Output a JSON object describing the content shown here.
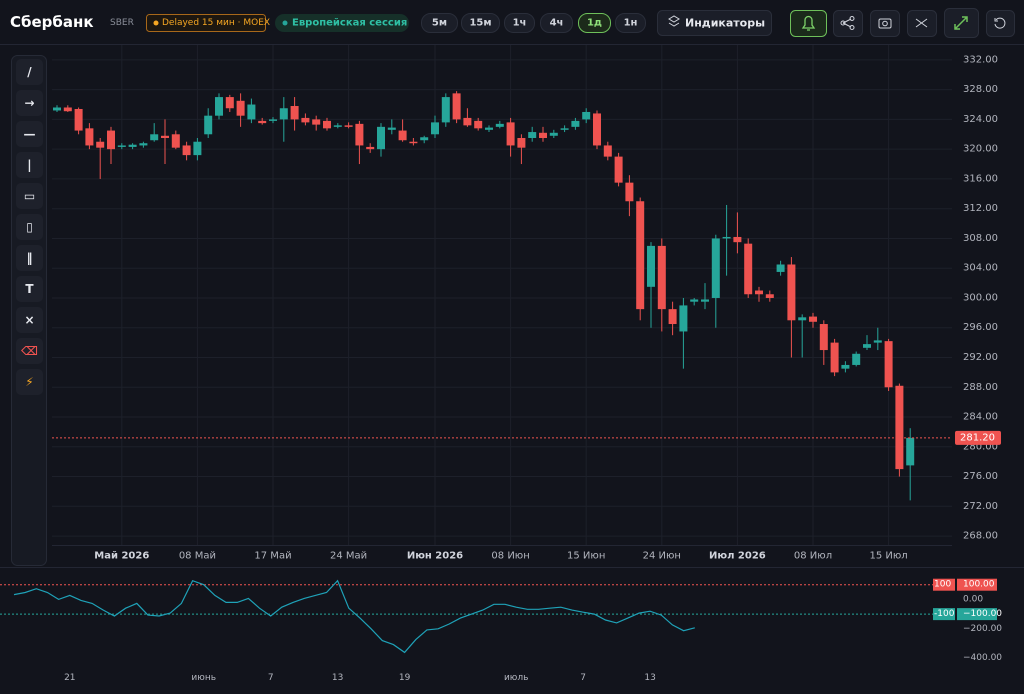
{
  "header": {
    "title": "Сбербанк",
    "ticker": "SBER",
    "delay": "Delayed 15 мин · MOEX",
    "session": "Европейская сессия",
    "intervals": [
      "5м",
      "15м",
      "1ч",
      "4ч",
      "1д",
      "1н"
    ],
    "active_interval": 4,
    "indicators": "Индикаторы"
  },
  "tools": [
    "/",
    "→",
    "—",
    "|",
    "▭",
    "▯",
    "‖",
    "T",
    "×",
    "⌫",
    "⚡"
  ],
  "chart_data": [
    {
      "type": "candlestick",
      "up_color": "#26a69a",
      "down_color": "#ef5350",
      "grid": true,
      "categories": [
        null,
        null,
        null,
        null,
        null,
        null,
        "Май 2026",
        null,
        null,
        null,
        null,
        null,
        null,
        "08 Май",
        null,
        null,
        null,
        null,
        null,
        null,
        "17 Май",
        null,
        null,
        null,
        null,
        null,
        null,
        "24 Май",
        null,
        null,
        null,
        null,
        null,
        null,
        null,
        "Июн 2026",
        null,
        null,
        null,
        null,
        null,
        null,
        "08 Июн",
        null,
        null,
        null,
        null,
        null,
        null,
        "15 Июн",
        null,
        null,
        null,
        null,
        null,
        null,
        "24 Июн",
        null,
        null,
        null,
        null,
        null,
        null,
        "Июл 2026",
        null,
        null,
        null,
        null,
        null,
        null,
        "08 Июл",
        null,
        null,
        null,
        null,
        null,
        null,
        "15 Июл",
        null,
        null
      ],
      "open": [
        325.2,
        325.6,
        325.4,
        322.8,
        321.0,
        322.5,
        320.3,
        320.3,
        320.5,
        321.2,
        321.8,
        322.0,
        320.5,
        319.2,
        322.0,
        324.5,
        327.0,
        326.5,
        324.0,
        323.8,
        323.8,
        324.0,
        325.8,
        324.2,
        324.0,
        323.8,
        323.0,
        323.2,
        323.4,
        320.3,
        320.0,
        322.6,
        322.5,
        321.0,
        321.2,
        322.0,
        323.6,
        327.5,
        324.2,
        323.8,
        322.6,
        323.0,
        323.6,
        321.5,
        321.5,
        322.2,
        321.8,
        322.6,
        323.0,
        324.0,
        324.8,
        320.5,
        319.0,
        315.5,
        313.0,
        301.5,
        307.0,
        298.5,
        295.5,
        299.5,
        299.5,
        300.0,
        308.0,
        308.2,
        307.3,
        301.0,
        300.5,
        303.5,
        304.5,
        297.0,
        297.5,
        296.5,
        294.0,
        290.5,
        291.0,
        293.3,
        294.0,
        294.2,
        288.2,
        277.5
      ],
      "high": [
        325.9,
        325.9,
        325.6,
        323.5,
        321.5,
        323.0,
        320.8,
        320.8,
        321.0,
        323.5,
        324.0,
        322.5,
        321.0,
        321.5,
        325.5,
        327.5,
        327.3,
        327.5,
        326.8,
        324.2,
        324.3,
        327.0,
        327.0,
        324.8,
        324.5,
        324.2,
        323.5,
        323.6,
        323.8,
        320.8,
        323.5,
        324.0,
        324.0,
        321.5,
        321.8,
        324.5,
        327.5,
        327.8,
        325.5,
        324.2,
        323.2,
        323.8,
        324.2,
        322.0,
        323.0,
        323.0,
        322.6,
        323.2,
        324.2,
        325.5,
        325.2,
        321.0,
        319.5,
        316.5,
        313.5,
        307.5,
        308.0,
        299.5,
        300.0,
        300.0,
        302.0,
        308.5,
        312.5,
        311.5,
        308.0,
        301.5,
        301.0,
        305.0,
        305.5,
        297.8,
        298.0,
        297.0,
        294.5,
        291.5,
        292.8,
        295.0,
        296.0,
        294.5,
        288.5,
        282.5
      ],
      "low": [
        325.0,
        325.0,
        322.0,
        320.0,
        316.0,
        318.0,
        320.0,
        320.0,
        320.2,
        321.0,
        318.0,
        320.0,
        318.5,
        318.5,
        321.5,
        324.0,
        325.0,
        323.0,
        323.5,
        323.3,
        323.5,
        321.0,
        322.5,
        323.2,
        322.5,
        322.5,
        322.8,
        322.8,
        318.0,
        319.5,
        319.0,
        322.0,
        321.0,
        320.5,
        320.8,
        321.5,
        323.0,
        323.5,
        323.0,
        322.5,
        322.3,
        322.8,
        319.0,
        318.0,
        321.0,
        321.0,
        321.5,
        322.3,
        322.6,
        323.5,
        320.0,
        318.5,
        315.0,
        311.0,
        297.0,
        296.0,
        295.5,
        295.0,
        290.5,
        299.0,
        298.5,
        296.0,
        303.0,
        306.0,
        300.0,
        299.5,
        299.5,
        303.0,
        292.0,
        292.0,
        296.0,
        291.0,
        289.5,
        290.0,
        290.8,
        293.0,
        293.0,
        287.5,
        276.0,
        272.8
      ],
      "close": [
        325.6,
        325.1,
        322.5,
        320.5,
        320.2,
        320.0,
        320.5,
        320.6,
        320.8,
        322.0,
        321.5,
        320.2,
        319.2,
        321.0,
        324.5,
        327.0,
        325.5,
        324.5,
        326.0,
        323.5,
        324.0,
        325.5,
        324.0,
        323.6,
        323.3,
        322.8,
        323.2,
        323.0,
        320.5,
        320.0,
        323.0,
        322.9,
        321.2,
        320.8,
        321.6,
        323.6,
        327.0,
        324.0,
        323.2,
        322.8,
        322.9,
        323.4,
        320.5,
        320.2,
        322.3,
        321.5,
        322.2,
        322.8,
        323.8,
        325.0,
        320.5,
        319.0,
        315.5,
        313.0,
        298.5,
        307.0,
        298.5,
        296.5,
        299.0,
        299.8,
        299.8,
        308.0,
        308.2,
        307.5,
        300.5,
        300.5,
        300.0,
        304.5,
        297.0,
        297.4,
        296.8,
        293.0,
        290.0,
        291.0,
        292.5,
        293.8,
        294.3,
        288.0,
        277.0,
        281.2
      ],
      "ylim": [
        266.8,
        334
      ],
      "yticks": [
        {
          "value": 332,
          "label": "332.00"
        },
        {
          "value": 328,
          "label": "328.00"
        },
        {
          "value": 324,
          "label": "324.00"
        },
        {
          "value": 320,
          "label": "320.00"
        },
        {
          "value": 316,
          "label": "316.00"
        },
        {
          "value": 312,
          "label": "312.00"
        },
        {
          "value": 308,
          "label": "308.00"
        },
        {
          "value": 304,
          "label": "304.00"
        },
        {
          "value": 300,
          "label": "300.00"
        },
        {
          "value": 296,
          "label": "296.00"
        },
        {
          "value": 292,
          "label": "292.00"
        },
        {
          "value": 288,
          "label": "288.00"
        },
        {
          "value": 284,
          "label": "284.00"
        },
        {
          "value": 280,
          "label": "280.00"
        },
        {
          "value": 276,
          "label": "276.00"
        },
        {
          "value": 272,
          "label": "272.00"
        },
        {
          "value": 268,
          "label": "268.00"
        }
      ],
      "last_price": {
        "value": 281.2,
        "label": "281.20"
      }
    },
    {
      "type": "line",
      "color": "#1fa2b8",
      "categories": [
        null,
        null,
        null,
        null,
        null,
        "21",
        null,
        null,
        null,
        null,
        null,
        null,
        null,
        null,
        null,
        null,
        null,
        "июнь",
        null,
        null,
        null,
        null,
        null,
        "7",
        null,
        null,
        null,
        null,
        null,
        "13",
        null,
        null,
        null,
        null,
        null,
        "19",
        null,
        null,
        null,
        null,
        null,
        null,
        null,
        null,
        null,
        "июль",
        null,
        null,
        null,
        null,
        null,
        "7",
        null,
        null,
        null,
        null,
        null,
        "13",
        null,
        null,
        null,
        null
      ],
      "values": [
        33,
        47,
        73,
        47,
        0,
        27,
        -7,
        -27,
        -73,
        -113,
        -60,
        -27,
        -107,
        -113,
        -93,
        -27,
        127,
        100,
        27,
        -20,
        -20,
        7,
        -60,
        -113,
        -53,
        -20,
        7,
        27,
        47,
        127,
        -60,
        -127,
        -200,
        -280,
        -307,
        -360,
        -273,
        -207,
        -200,
        -167,
        -127,
        -100,
        -73,
        -33,
        -33,
        -53,
        -67,
        -67,
        -60,
        -53,
        -73,
        -87,
        -100,
        -140,
        -160,
        -127,
        -93,
        -80,
        -107,
        -173,
        -213,
        -193
      ],
      "ylim": [
        -480,
        200
      ],
      "yticks": [
        {
          "value": 100,
          "label": "100.00"
        },
        {
          "value": 0,
          "label": "0.00"
        },
        {
          "value": -100,
          "label": "−100.00"
        },
        {
          "value": -200,
          "label": "−200.00"
        },
        {
          "value": -400,
          "label": "−400.00"
        }
      ],
      "levels": [
        {
          "value": 100,
          "label": "100",
          "color": "#ef5350"
        },
        {
          "value": -100,
          "label": "-100",
          "color": "#26a69a"
        }
      ]
    }
  ]
}
